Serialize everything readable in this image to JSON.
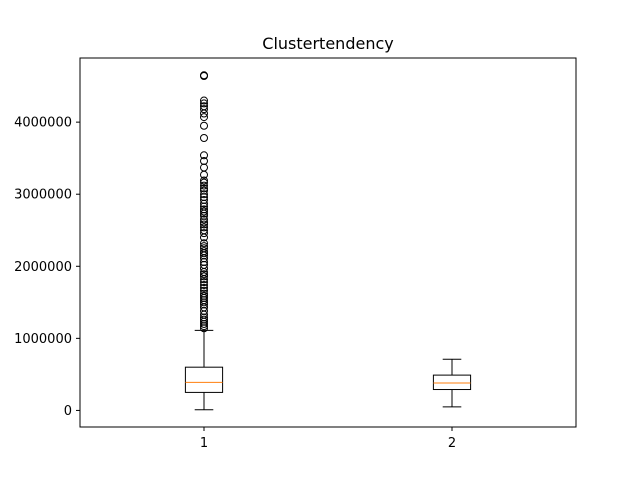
{
  "chart_data": {
    "type": "boxplot",
    "title": "Clustertendency",
    "xlabel": "",
    "ylabel": "",
    "categories": [
      "1",
      "2"
    ],
    "ylim": [
      -230000,
      4890000
    ],
    "yticks": [
      0,
      1000000,
      2000000,
      3000000,
      4000000
    ],
    "ytick_labels": [
      "0",
      "1000000",
      "2000000",
      "3000000",
      "4000000"
    ],
    "grid": false,
    "series": [
      {
        "whisker_low": 10000,
        "q1": 250000,
        "median": 390000,
        "q3": 600000,
        "whisker_high": 1110000,
        "outliers": [
          1140000,
          1170000,
          1200000,
          1230000,
          1260000,
          1290000,
          1330000,
          1380000,
          1430000,
          1470000,
          1500000,
          1530000,
          1560000,
          1590000,
          1620000,
          1660000,
          1700000,
          1740000,
          1780000,
          1820000,
          1860000,
          1890000,
          1920000,
          1970000,
          2020000,
          2060000,
          2110000,
          2150000,
          2180000,
          2210000,
          2250000,
          2280000,
          2320000,
          2400000,
          2460000,
          2500000,
          2540000,
          2580000,
          2610000,
          2650000,
          2700000,
          2730000,
          2760000,
          2790000,
          2830000,
          2870000,
          2920000,
          2960000,
          3000000,
          3050000,
          3080000,
          3120000,
          3160000,
          3190000,
          3270000,
          3370000,
          3460000,
          3540000,
          3780000,
          3950000,
          4070000,
          4120000,
          4180000,
          4220000,
          4260000,
          4300000,
          4640000,
          4650000
        ]
      },
      {
        "whisker_low": 50000,
        "q1": 290000,
        "median": 380000,
        "q3": 490000,
        "whisker_high": 710000,
        "outliers": []
      }
    ],
    "colors": {
      "box": "#000000",
      "median": "#ff7f0e",
      "outlier_edge": "#000000"
    }
  }
}
